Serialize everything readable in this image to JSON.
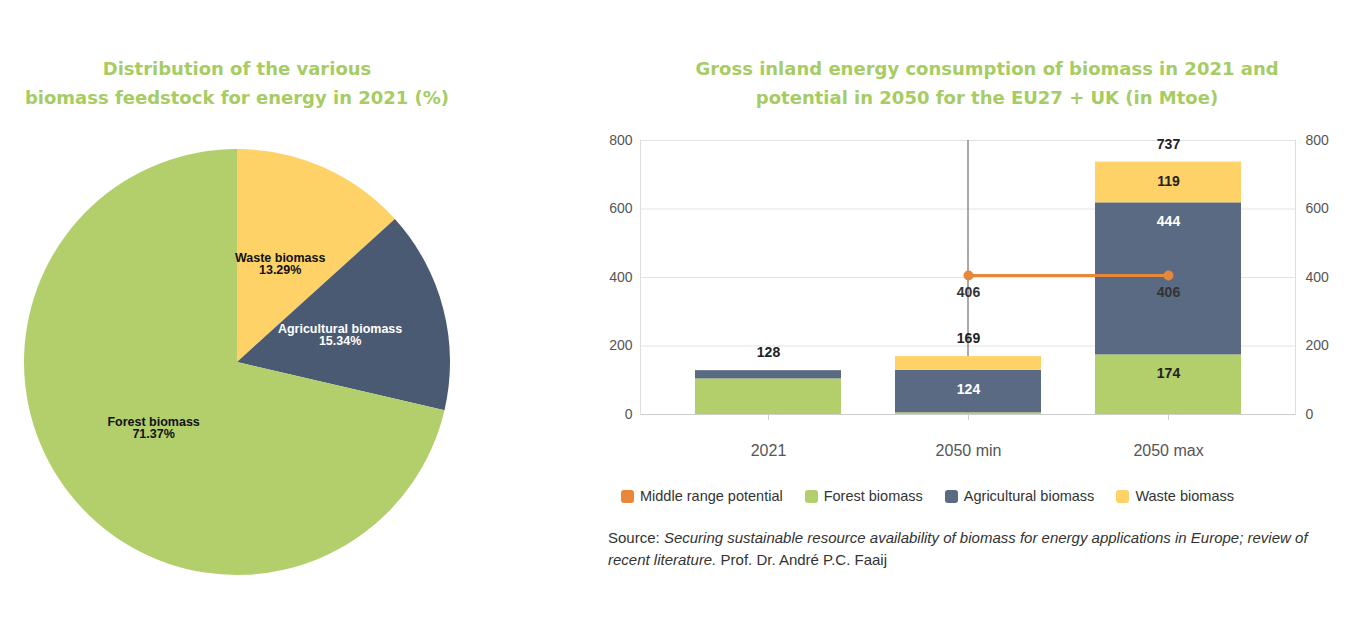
{
  "chart_data": [
    {
      "type": "pie",
      "title": "Distribution of the various\nbiomass feedstock for energy in 2021 (%)",
      "categories": [
        "Waste biomass",
        "Agricultural biomass",
        "Forest biomass"
      ],
      "values": [
        13.29,
        15.34,
        71.37
      ],
      "value_labels": [
        "13.29%",
        "15.34%",
        "71.37%"
      ],
      "colors": [
        "#fed267",
        "#4a5a72",
        "#b2cf6b"
      ],
      "data_labels": true
    },
    {
      "type": "bar",
      "stacked": true,
      "title": "Gross inland energy consumption of biomass in 2021 and\npotential in 2050 for the EU27 + UK (in Mtoe)",
      "categories": [
        "2021",
        "2050 min",
        "2050 max"
      ],
      "series": [
        {
          "name": "Middle range potential",
          "type": "line",
          "marker": "circle",
          "color": "#e8873a",
          "values": [
            null,
            406,
            406
          ]
        },
        {
          "name": "Forest biomass",
          "type": "bar",
          "color": "#b2cf6b",
          "values": [
            104,
            5,
            174
          ],
          "value_labels": [
            null,
            null,
            "174"
          ]
        },
        {
          "name": "Agricultural biomass",
          "type": "bar",
          "color": "#5a6a82",
          "values": [
            24,
            124,
            444
          ],
          "value_labels": [
            null,
            "124",
            "444"
          ]
        },
        {
          "name": "Waste biomass",
          "type": "bar",
          "color": "#fed267",
          "values": [
            null,
            40,
            119
          ],
          "value_labels": [
            null,
            null,
            "119"
          ]
        }
      ],
      "totals": [
        128,
        169,
        737
      ],
      "ylim": [
        0,
        800
      ],
      "yticks": [
        0,
        200,
        400,
        600,
        800
      ],
      "y2lim": [
        0,
        800
      ],
      "y2ticks": [
        0,
        200,
        400,
        600,
        800
      ],
      "grid": true,
      "data_labels": true,
      "legend": "bottom",
      "source_label": "Source:",
      "source_title": "Securing sustainable resource availability of biomass for energy applications in Europe; review of recent literature.",
      "source_author": "Prof. Dr. André P.C. Faaij"
    }
  ]
}
